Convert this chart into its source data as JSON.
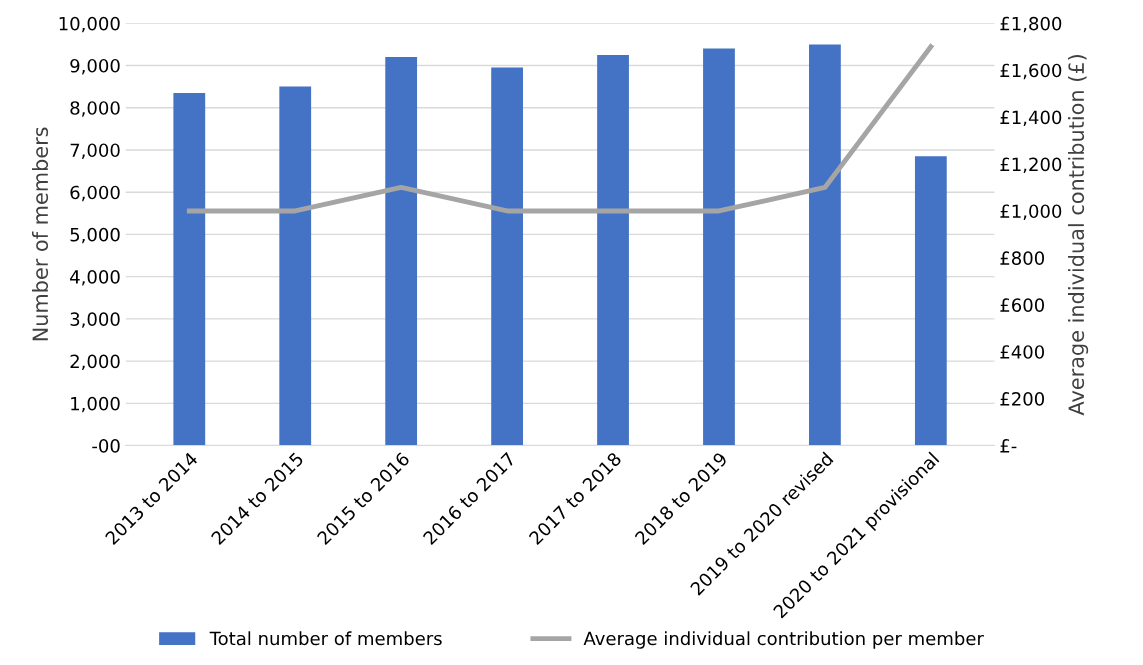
{
  "chart_data": {
    "type": "bar",
    "categories": [
      "2013 to 2014",
      "2014 to 2015",
      "2015 to 2016",
      "2016 to 2017",
      "2017 to 2018",
      "2018 to 2019",
      "2019 to 2020 revised",
      "2020 to 2021 provisional"
    ],
    "series": [
      {
        "name": "Total number of members",
        "color": "#4472c4",
        "values": [
          8350,
          8500,
          9200,
          8950,
          9250,
          9400,
          9500,
          6850
        ]
      },
      {
        "name": "Average individual contribution per member",
        "type": "line",
        "axis": "y2",
        "color": "#a5a5a5",
        "values": [
          1000,
          1000,
          1100,
          1000,
          1000,
          1000,
          1100,
          1700
        ]
      }
    ],
    "ylabel": "Number of members",
    "y2label": "Average individual contribution (£)",
    "ylim": [
      0,
      10000
    ],
    "yticks": [
      {
        "value": 0,
        "label": "-00"
      },
      {
        "value": 1000,
        "label": "1,000"
      },
      {
        "value": 2000,
        "label": "2,000"
      },
      {
        "value": 3000,
        "label": "3,000"
      },
      {
        "value": 4000,
        "label": "4,000"
      },
      {
        "value": 5000,
        "label": "5,000"
      },
      {
        "value": 6000,
        "label": "6,000"
      },
      {
        "value": 7000,
        "label": "7,000"
      },
      {
        "value": 8000,
        "label": "8,000"
      },
      {
        "value": 9000,
        "label": "9,000"
      },
      {
        "value": 10000,
        "label": "10,000"
      }
    ],
    "y2lim": [
      0,
      1800
    ],
    "y2ticks": [
      {
        "value": 0,
        "label": "£-"
      },
      {
        "value": 200,
        "label": "£200"
      },
      {
        "value": 400,
        "label": "£400"
      },
      {
        "value": 600,
        "label": "£600"
      },
      {
        "value": 800,
        "label": "£800"
      },
      {
        "value": 1000,
        "label": "£1,000"
      },
      {
        "value": 1200,
        "label": "£1,200"
      },
      {
        "value": 1400,
        "label": "£1,400"
      },
      {
        "value": 1600,
        "label": "£1,600"
      },
      {
        "value": 1800,
        "label": "£1,800"
      }
    ],
    "grid": "y",
    "legend": "bottom",
    "marker": "none"
  }
}
